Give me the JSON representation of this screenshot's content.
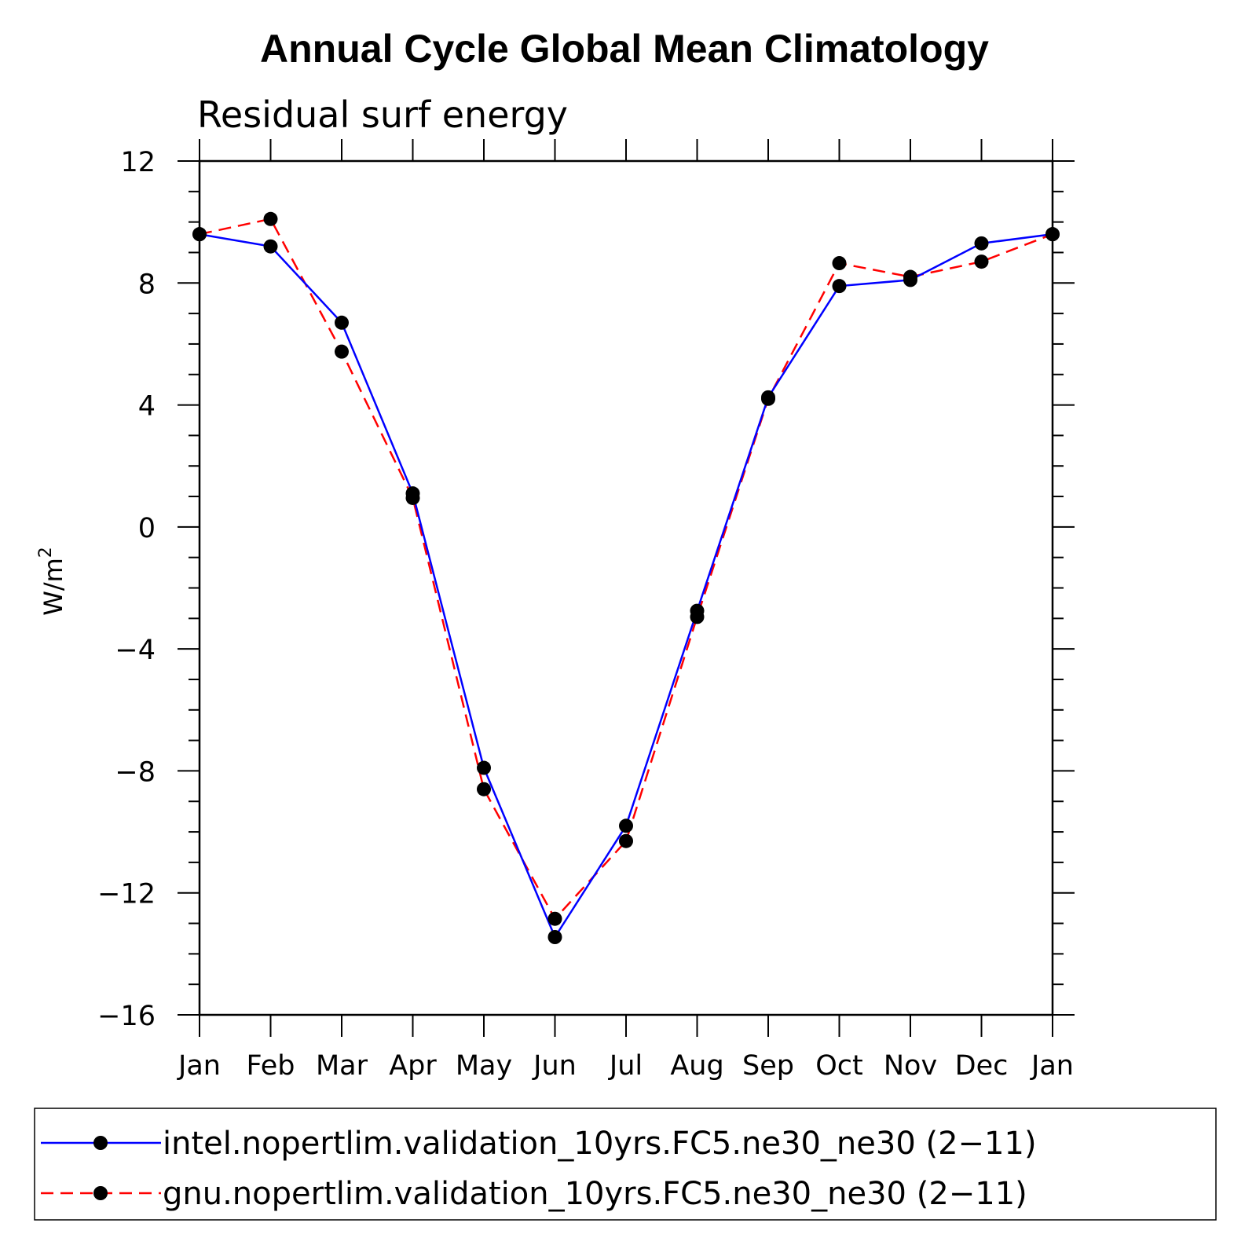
{
  "chart_data": {
    "type": "line",
    "title": "Annual Cycle Global Mean Climatology",
    "subtitle": "Residual surf energy",
    "ylabel": "W/m",
    "ylabel_superscript": "2",
    "xlabel": "",
    "categories": [
      "Jan",
      "Feb",
      "Mar",
      "Apr",
      "May",
      "Jun",
      "Jul",
      "Aug",
      "Sep",
      "Oct",
      "Nov",
      "Dec",
      "Jan"
    ],
    "ylim": [
      -16,
      12
    ],
    "yticks": [
      -16,
      -12,
      -8,
      -4,
      0,
      4,
      8,
      12
    ],
    "ytick_labels": [
      "−16",
      "−12",
      "−8",
      "−4",
      "0",
      "4",
      "8",
      "12"
    ],
    "y_minor_step": 1,
    "grid": false,
    "legend_position": "bottom",
    "series": [
      {
        "name": "intel.nopertlim.validation_10yrs.FC5.ne30_ne30 (2−11)",
        "color": "#0000ff",
        "style": "solid",
        "marker": "filled-circle",
        "marker_color": "#000000",
        "values": [
          9.6,
          9.2,
          6.7,
          1.1,
          -7.9,
          -13.45,
          -9.8,
          -2.75,
          4.25,
          7.9,
          8.1,
          9.3,
          9.6
        ]
      },
      {
        "name": "gnu.nopertlim.validation_10yrs.FC5.ne30_ne30 (2−11)",
        "color": "#ff0000",
        "style": "dashed",
        "marker": "filled-circle",
        "marker_color": "#000000",
        "values": [
          9.6,
          10.1,
          5.75,
          0.95,
          -8.6,
          -12.85,
          -10.3,
          -2.95,
          4.2,
          8.65,
          8.2,
          8.7,
          9.6
        ]
      }
    ]
  }
}
